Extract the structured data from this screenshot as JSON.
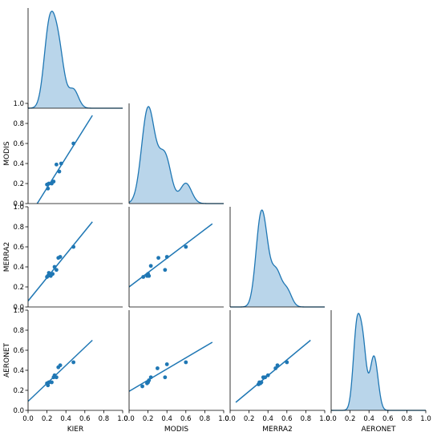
{
  "chart_data": {
    "type": "pairplot",
    "variables": [
      "KIER",
      "MODIS",
      "MERRA2",
      "AERONET"
    ],
    "xlabels": [
      "KIER",
      "MODIS",
      "MERRA2",
      "AERONET"
    ],
    "ylabels": [
      "",
      "MODIS",
      "MERRA2",
      "AERONET"
    ],
    "lim": [
      0.0,
      1.0
    ],
    "tick_labels": [
      "0.0",
      "0.2",
      "0.4",
      "0.6",
      "0.8",
      "1.0"
    ],
    "color": "#1f77b4",
    "kde_fill_color": "#b9d5ea",
    "grid": false,
    "kde": [
      {
        "name": "KIER",
        "bandwidth": 0.052,
        "x_range": [
          0.0,
          1.0
        ]
      },
      {
        "name": "MODIS",
        "bandwidth": 0.06,
        "x_range": [
          0.0,
          1.0
        ]
      },
      {
        "name": "MERRA2",
        "bandwidth": 0.05,
        "x_range": [
          0.0,
          1.0
        ]
      },
      {
        "name": "AERONET",
        "bandwidth": 0.035,
        "x_range": [
          0.0,
          1.0
        ]
      }
    ],
    "scatter": [
      {
        "x_var": "KIER",
        "y_var": "MODIS",
        "points": [
          [
            0.2,
            0.19
          ],
          [
            0.21,
            0.15
          ],
          [
            0.22,
            0.2
          ],
          [
            0.25,
            0.2
          ],
          [
            0.27,
            0.22
          ],
          [
            0.3,
            0.39
          ],
          [
            0.33,
            0.32
          ],
          [
            0.35,
            0.4
          ],
          [
            0.48,
            0.6
          ]
        ],
        "fit": {
          "x": [
            0.09,
            0.68
          ],
          "y": [
            -0.01,
            0.88
          ]
        }
      },
      {
        "x_var": "KIER",
        "y_var": "MERRA2",
        "points": [
          [
            0.2,
            0.3
          ],
          [
            0.21,
            0.31
          ],
          [
            0.22,
            0.34
          ],
          [
            0.24,
            0.31
          ],
          [
            0.26,
            0.33
          ],
          [
            0.28,
            0.4
          ],
          [
            0.3,
            0.37
          ],
          [
            0.32,
            0.49
          ],
          [
            0.34,
            0.5
          ],
          [
            0.48,
            0.6
          ]
        ],
        "fit": {
          "x": [
            0.0,
            0.68
          ],
          "y": [
            0.06,
            0.85
          ]
        }
      },
      {
        "x_var": "MODIS",
        "y_var": "MERRA2",
        "points": [
          [
            0.15,
            0.3
          ],
          [
            0.19,
            0.31
          ],
          [
            0.2,
            0.33
          ],
          [
            0.21,
            0.31
          ],
          [
            0.23,
            0.41
          ],
          [
            0.31,
            0.49
          ],
          [
            0.38,
            0.37
          ],
          [
            0.4,
            0.5
          ],
          [
            0.6,
            0.6
          ]
        ],
        "fit": {
          "x": [
            0.0,
            0.88
          ],
          "y": [
            0.2,
            0.83
          ]
        }
      },
      {
        "x_var": "KIER",
        "y_var": "AERONET",
        "points": [
          [
            0.2,
            0.27
          ],
          [
            0.21,
            0.25
          ],
          [
            0.22,
            0.28
          ],
          [
            0.25,
            0.28
          ],
          [
            0.27,
            0.33
          ],
          [
            0.28,
            0.35
          ],
          [
            0.3,
            0.33
          ],
          [
            0.32,
            0.43
          ],
          [
            0.34,
            0.45
          ],
          [
            0.48,
            0.48
          ]
        ],
        "fit": {
          "x": [
            0.0,
            0.68
          ],
          "y": [
            0.09,
            0.7
          ]
        }
      },
      {
        "x_var": "MODIS",
        "y_var": "AERONET",
        "points": [
          [
            0.14,
            0.24
          ],
          [
            0.19,
            0.27
          ],
          [
            0.2,
            0.28
          ],
          [
            0.21,
            0.3
          ],
          [
            0.23,
            0.33
          ],
          [
            0.3,
            0.42
          ],
          [
            0.38,
            0.33
          ],
          [
            0.4,
            0.46
          ],
          [
            0.6,
            0.48
          ]
        ],
        "fit": {
          "x": [
            0.0,
            0.88
          ],
          "y": [
            0.19,
            0.68
          ]
        }
      },
      {
        "x_var": "MERRA2",
        "y_var": "AERONET",
        "points": [
          [
            0.3,
            0.26
          ],
          [
            0.31,
            0.28
          ],
          [
            0.32,
            0.27
          ],
          [
            0.33,
            0.28
          ],
          [
            0.35,
            0.33
          ],
          [
            0.37,
            0.33
          ],
          [
            0.4,
            0.35
          ],
          [
            0.48,
            0.42
          ],
          [
            0.5,
            0.45
          ],
          [
            0.6,
            0.48
          ]
        ],
        "fit": {
          "x": [
            0.06,
            0.85
          ],
          "y": [
            0.08,
            0.7
          ]
        }
      }
    ]
  }
}
